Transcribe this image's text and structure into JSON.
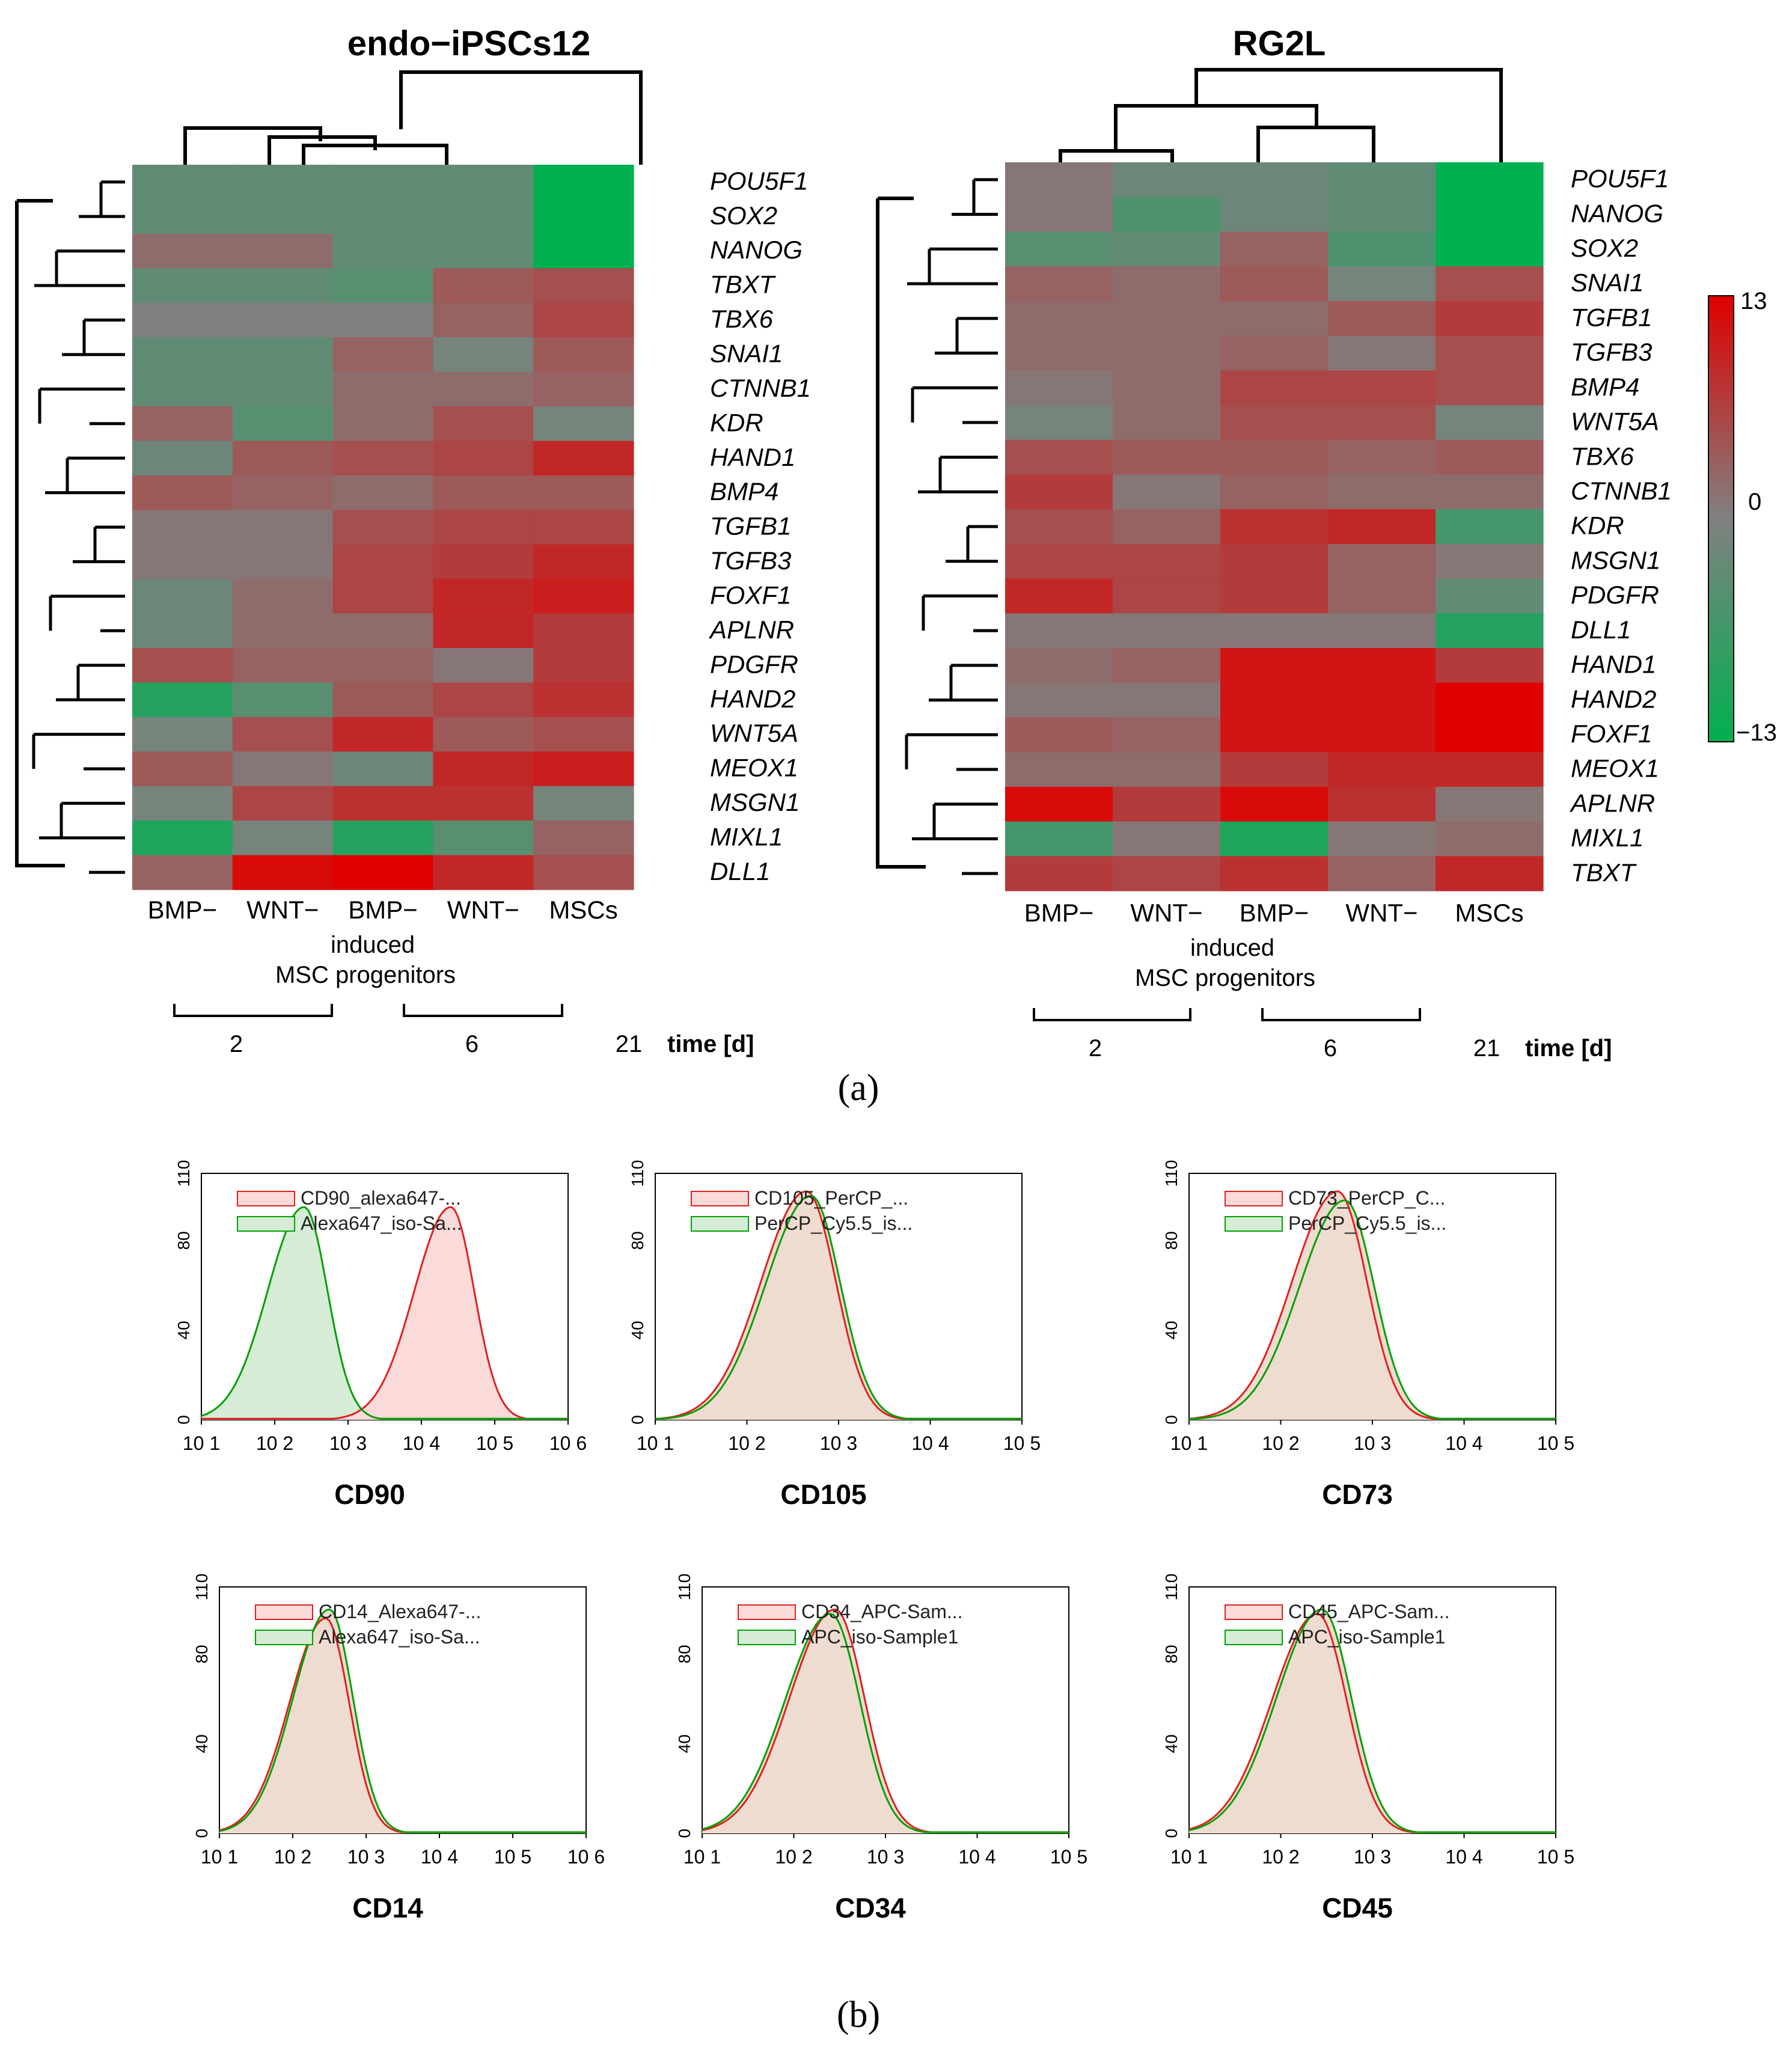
{
  "figure": {
    "panel_a_label": "(a)",
    "panel_b_label": "(b)"
  },
  "colors": {
    "high": "#e00000",
    "mid": "#808080",
    "low": "#00b050",
    "iso_line": "#00a000",
    "iso_fill": "#d6ecd6",
    "marker_line": "#e02020",
    "marker_fill": "#fbdada",
    "overlap_fill": "#efdcd0"
  },
  "heatmap_shared": {
    "columns": [
      "BMP−",
      "WNT−",
      "BMP−",
      "WNT−",
      "MSCs"
    ],
    "group_label_line1": "induced",
    "group_label_line2": "MSC progenitors",
    "time_values": [
      "2",
      "6",
      "21"
    ],
    "time_label": "time [d]"
  },
  "colorbar": {
    "max_label": "13",
    "mid_label": "0",
    "min_label": "−13",
    "max": 13,
    "min": -13
  },
  "chart_data": [
    {
      "type": "heatmap",
      "title": "endo−iPSCs12",
      "rows": [
        "POU5F1",
        "SOX2",
        "NANOG",
        "TBXT",
        "TBX6",
        "SNAI1",
        "CTNNB1",
        "KDR",
        "HAND1",
        "BMP4",
        "TGFB1",
        "TGFB3",
        "FOXF1",
        "APLNR",
        "PDGFR",
        "HAND2",
        "WNT5A",
        "MEOX1",
        "MSGN1",
        "MIXL1",
        "DLL1"
      ],
      "columns": [
        "BMP− d2",
        "WNT− d2",
        "BMP− d6",
        "WNT− d6",
        "MSCs d21"
      ],
      "values": [
        [
          -3,
          -3,
          -3,
          -3,
          -13
        ],
        [
          -3,
          -3,
          -3,
          -3,
          -13
        ],
        [
          2,
          2,
          -3,
          -3,
          -13
        ],
        [
          -3,
          -3,
          -4,
          4,
          5
        ],
        [
          0,
          0,
          0,
          3,
          6
        ],
        [
          -3,
          -3,
          3,
          -1,
          4
        ],
        [
          -3,
          -3,
          2,
          2,
          3
        ],
        [
          3,
          -4,
          2,
          5,
          -1
        ],
        [
          -2,
          4,
          5,
          6,
          9
        ],
        [
          4,
          3,
          2,
          4,
          4
        ],
        [
          1,
          1,
          5,
          6,
          6
        ],
        [
          1,
          1,
          6,
          7,
          9
        ],
        [
          -2,
          2,
          6,
          9,
          10
        ],
        [
          -2,
          2,
          2,
          9,
          7
        ],
        [
          5,
          3,
          3,
          1,
          7
        ],
        [
          -9,
          -4,
          4,
          6,
          8
        ],
        [
          -1,
          5,
          9,
          4,
          5
        ],
        [
          4,
          1,
          -2,
          9,
          10
        ],
        [
          -1,
          6,
          8,
          8,
          -1
        ],
        [
          -10,
          -1,
          -9,
          -4,
          3
        ],
        [
          3,
          12,
          13,
          9,
          5
        ]
      ],
      "colorscale": {
        "min": -13,
        "max": 13
      }
    },
    {
      "type": "heatmap",
      "title": "RG2L",
      "rows": [
        "POU5F1",
        "NANOG",
        "SOX2",
        "SNAI1",
        "TGFB1",
        "TGFB3",
        "BMP4",
        "WNT5A",
        "TBX6",
        "CTNNB1",
        "KDR",
        "MSGN1",
        "PDGFR",
        "DLL1",
        "HAND1",
        "HAND2",
        "FOXF1",
        "MEOX1",
        "APLNR",
        "MIXL1",
        "TBXT"
      ],
      "columns": [
        "BMP− d2",
        "WNT− d2",
        "BMP− d6",
        "WNT− d6",
        "MSCs d21"
      ],
      "values": [
        [
          1,
          -2,
          -2,
          -3,
          -13
        ],
        [
          1,
          -5,
          -2,
          -3,
          -13
        ],
        [
          -4,
          -3,
          3,
          -5,
          -13
        ],
        [
          3,
          2,
          4,
          -1,
          5
        ],
        [
          2,
          2,
          2,
          4,
          7
        ],
        [
          2,
          2,
          3,
          1,
          5
        ],
        [
          1,
          2,
          6,
          6,
          5
        ],
        [
          -1,
          2,
          5,
          5,
          -1
        ],
        [
          5,
          4,
          4,
          3,
          4
        ],
        [
          7,
          1,
          3,
          2,
          2
        ],
        [
          5,
          3,
          8,
          9,
          -6
        ],
        [
          6,
          6,
          7,
          3,
          1
        ],
        [
          9,
          6,
          7,
          3,
          -3
        ],
        [
          1,
          1,
          1,
          1,
          -9
        ],
        [
          2,
          3,
          11,
          11,
          7
        ],
        [
          1,
          1,
          11,
          11,
          13
        ],
        [
          4,
          3,
          11,
          11,
          13
        ],
        [
          2,
          2,
          7,
          9,
          9
        ],
        [
          12,
          7,
          12,
          8,
          1
        ],
        [
          -6,
          1,
          -10,
          1,
          2
        ],
        [
          7,
          6,
          8,
          3,
          9
        ]
      ],
      "colorscale": {
        "min": -13,
        "max": 13
      }
    },
    {
      "type": "histogram-overlay",
      "marker": "CD90",
      "legend": [
        "CD90_alexa647-...",
        "Alexa647_iso-Sa..."
      ],
      "ytick_labels": [
        "0",
        "40",
        "80",
        "110"
      ],
      "xtick_labels": [
        "10 1",
        "10 2",
        "10 3",
        "10 4",
        "10 5",
        "10 6"
      ],
      "xlim_log10": [
        1,
        6
      ],
      "ylim": [
        0,
        110
      ],
      "iso_peak_log10": 2.4,
      "iso_peak_count": 95,
      "sample_peak_log10": 4.4,
      "sample_peak_count": 95
    },
    {
      "type": "histogram-overlay",
      "marker": "CD105",
      "legend": [
        "CD105_PerCP_...",
        "PerCP_Cy5.5_is..."
      ],
      "ytick_labels": [
        "0",
        "40",
        "80",
        "110"
      ],
      "xtick_labels": [
        "10 1",
        "10 2",
        "10 3",
        "10 4",
        "10 5"
      ],
      "xlim_log10": [
        1,
        5
      ],
      "ylim": [
        0,
        110
      ],
      "iso_peak_log10": 2.7,
      "iso_peak_count": 100,
      "sample_peak_log10": 2.65,
      "sample_peak_count": 102
    },
    {
      "type": "histogram-overlay",
      "marker": "CD73",
      "legend": [
        "CD73_PerCP_C...",
        "PerCP_Cy5.5_is..."
      ],
      "ytick_labels": [
        "0",
        "40",
        "80",
        "110"
      ],
      "xtick_labels": [
        "10 1",
        "10 2",
        "10 3",
        "10 4",
        "10 5"
      ],
      "xlim_log10": [
        1,
        5
      ],
      "ylim": [
        0,
        110
      ],
      "iso_peak_log10": 2.7,
      "iso_peak_count": 98,
      "sample_peak_log10": 2.62,
      "sample_peak_count": 102
    },
    {
      "type": "histogram-overlay",
      "marker": "CD14",
      "legend": [
        "CD14_Alexa647-...",
        "Alexa647_iso-Sa..."
      ],
      "ytick_labels": [
        "0",
        "40",
        "80",
        "110"
      ],
      "xtick_labels": [
        "10 1",
        "10 2",
        "10 3",
        "10 4",
        "10 5",
        "10 6"
      ],
      "xlim_log10": [
        1,
        6
      ],
      "ylim": [
        0,
        110
      ],
      "iso_peak_log10": 2.5,
      "iso_peak_count": 100,
      "sample_peak_log10": 2.45,
      "sample_peak_count": 96
    },
    {
      "type": "histogram-overlay",
      "marker": "CD34",
      "legend": [
        "CD34_APC-Sam...",
        "APC_iso-Sample1"
      ],
      "ytick_labels": [
        "0",
        "40",
        "80",
        "110"
      ],
      "xtick_labels": [
        "10 1",
        "10 2",
        "10 3",
        "10 4",
        "10 5"
      ],
      "xlim_log10": [
        1,
        5
      ],
      "ylim": [
        0,
        110
      ],
      "iso_peak_log10": 2.4,
      "iso_peak_count": 98,
      "sample_peak_log10": 2.45,
      "sample_peak_count": 100
    },
    {
      "type": "histogram-overlay",
      "marker": "CD45",
      "legend": [
        "CD45_APC-Sam...",
        "APC_iso-Sample1"
      ],
      "ytick_labels": [
        "0",
        "40",
        "80",
        "110"
      ],
      "xtick_labels": [
        "10 1",
        "10 2",
        "10 3",
        "10 4",
        "10 5"
      ],
      "xlim_log10": [
        1,
        5
      ],
      "ylim": [
        0,
        110
      ],
      "iso_peak_log10": 2.45,
      "iso_peak_count": 100,
      "sample_peak_log10": 2.4,
      "sample_peak_count": 98
    }
  ]
}
